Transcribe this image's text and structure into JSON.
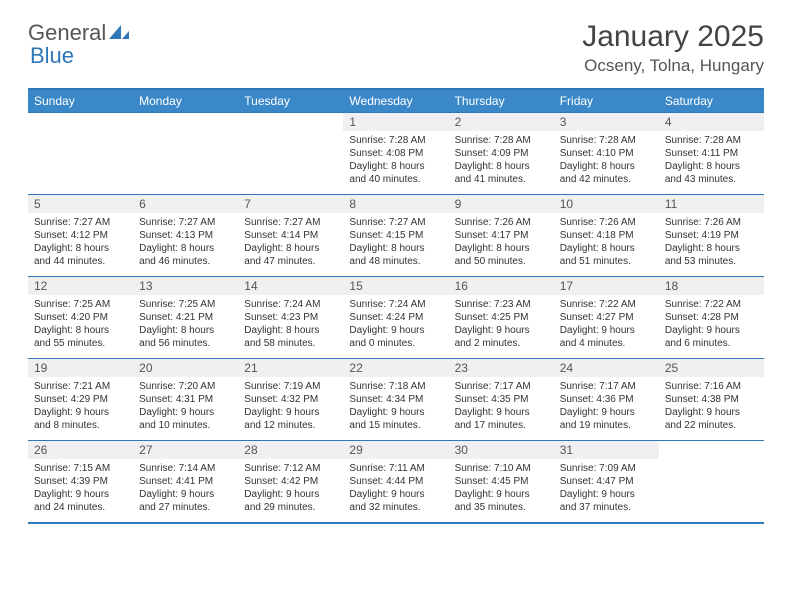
{
  "brand": {
    "word1": "General",
    "word2": "Blue"
  },
  "title": "January 2025",
  "location": "Ocseny, Tolna, Hungary",
  "colors": {
    "header_bg": "#3b88c9",
    "border": "#2f77b8",
    "daynum_bg": "#eef0f1",
    "text": "#333333"
  },
  "weekdays": [
    "Sunday",
    "Monday",
    "Tuesday",
    "Wednesday",
    "Thursday",
    "Friday",
    "Saturday"
  ],
  "cells": [
    {
      "n": "",
      "sr": "",
      "ss": "",
      "dl": ""
    },
    {
      "n": "",
      "sr": "",
      "ss": "",
      "dl": ""
    },
    {
      "n": "",
      "sr": "",
      "ss": "",
      "dl": ""
    },
    {
      "n": "1",
      "sr": "Sunrise: 7:28 AM",
      "ss": "Sunset: 4:08 PM",
      "dl": "Daylight: 8 hours and 40 minutes."
    },
    {
      "n": "2",
      "sr": "Sunrise: 7:28 AM",
      "ss": "Sunset: 4:09 PM",
      "dl": "Daylight: 8 hours and 41 minutes."
    },
    {
      "n": "3",
      "sr": "Sunrise: 7:28 AM",
      "ss": "Sunset: 4:10 PM",
      "dl": "Daylight: 8 hours and 42 minutes."
    },
    {
      "n": "4",
      "sr": "Sunrise: 7:28 AM",
      "ss": "Sunset: 4:11 PM",
      "dl": "Daylight: 8 hours and 43 minutes."
    },
    {
      "n": "5",
      "sr": "Sunrise: 7:27 AM",
      "ss": "Sunset: 4:12 PM",
      "dl": "Daylight: 8 hours and 44 minutes."
    },
    {
      "n": "6",
      "sr": "Sunrise: 7:27 AM",
      "ss": "Sunset: 4:13 PM",
      "dl": "Daylight: 8 hours and 46 minutes."
    },
    {
      "n": "7",
      "sr": "Sunrise: 7:27 AM",
      "ss": "Sunset: 4:14 PM",
      "dl": "Daylight: 8 hours and 47 minutes."
    },
    {
      "n": "8",
      "sr": "Sunrise: 7:27 AM",
      "ss": "Sunset: 4:15 PM",
      "dl": "Daylight: 8 hours and 48 minutes."
    },
    {
      "n": "9",
      "sr": "Sunrise: 7:26 AM",
      "ss": "Sunset: 4:17 PM",
      "dl": "Daylight: 8 hours and 50 minutes."
    },
    {
      "n": "10",
      "sr": "Sunrise: 7:26 AM",
      "ss": "Sunset: 4:18 PM",
      "dl": "Daylight: 8 hours and 51 minutes."
    },
    {
      "n": "11",
      "sr": "Sunrise: 7:26 AM",
      "ss": "Sunset: 4:19 PM",
      "dl": "Daylight: 8 hours and 53 minutes."
    },
    {
      "n": "12",
      "sr": "Sunrise: 7:25 AM",
      "ss": "Sunset: 4:20 PM",
      "dl": "Daylight: 8 hours and 55 minutes."
    },
    {
      "n": "13",
      "sr": "Sunrise: 7:25 AM",
      "ss": "Sunset: 4:21 PM",
      "dl": "Daylight: 8 hours and 56 minutes."
    },
    {
      "n": "14",
      "sr": "Sunrise: 7:24 AM",
      "ss": "Sunset: 4:23 PM",
      "dl": "Daylight: 8 hours and 58 minutes."
    },
    {
      "n": "15",
      "sr": "Sunrise: 7:24 AM",
      "ss": "Sunset: 4:24 PM",
      "dl": "Daylight: 9 hours and 0 minutes."
    },
    {
      "n": "16",
      "sr": "Sunrise: 7:23 AM",
      "ss": "Sunset: 4:25 PM",
      "dl": "Daylight: 9 hours and 2 minutes."
    },
    {
      "n": "17",
      "sr": "Sunrise: 7:22 AM",
      "ss": "Sunset: 4:27 PM",
      "dl": "Daylight: 9 hours and 4 minutes."
    },
    {
      "n": "18",
      "sr": "Sunrise: 7:22 AM",
      "ss": "Sunset: 4:28 PM",
      "dl": "Daylight: 9 hours and 6 minutes."
    },
    {
      "n": "19",
      "sr": "Sunrise: 7:21 AM",
      "ss": "Sunset: 4:29 PM",
      "dl": "Daylight: 9 hours and 8 minutes."
    },
    {
      "n": "20",
      "sr": "Sunrise: 7:20 AM",
      "ss": "Sunset: 4:31 PM",
      "dl": "Daylight: 9 hours and 10 minutes."
    },
    {
      "n": "21",
      "sr": "Sunrise: 7:19 AM",
      "ss": "Sunset: 4:32 PM",
      "dl": "Daylight: 9 hours and 12 minutes."
    },
    {
      "n": "22",
      "sr": "Sunrise: 7:18 AM",
      "ss": "Sunset: 4:34 PM",
      "dl": "Daylight: 9 hours and 15 minutes."
    },
    {
      "n": "23",
      "sr": "Sunrise: 7:17 AM",
      "ss": "Sunset: 4:35 PM",
      "dl": "Daylight: 9 hours and 17 minutes."
    },
    {
      "n": "24",
      "sr": "Sunrise: 7:17 AM",
      "ss": "Sunset: 4:36 PM",
      "dl": "Daylight: 9 hours and 19 minutes."
    },
    {
      "n": "25",
      "sr": "Sunrise: 7:16 AM",
      "ss": "Sunset: 4:38 PM",
      "dl": "Daylight: 9 hours and 22 minutes."
    },
    {
      "n": "26",
      "sr": "Sunrise: 7:15 AM",
      "ss": "Sunset: 4:39 PM",
      "dl": "Daylight: 9 hours and 24 minutes."
    },
    {
      "n": "27",
      "sr": "Sunrise: 7:14 AM",
      "ss": "Sunset: 4:41 PM",
      "dl": "Daylight: 9 hours and 27 minutes."
    },
    {
      "n": "28",
      "sr": "Sunrise: 7:12 AM",
      "ss": "Sunset: 4:42 PM",
      "dl": "Daylight: 9 hours and 29 minutes."
    },
    {
      "n": "29",
      "sr": "Sunrise: 7:11 AM",
      "ss": "Sunset: 4:44 PM",
      "dl": "Daylight: 9 hours and 32 minutes."
    },
    {
      "n": "30",
      "sr": "Sunrise: 7:10 AM",
      "ss": "Sunset: 4:45 PM",
      "dl": "Daylight: 9 hours and 35 minutes."
    },
    {
      "n": "31",
      "sr": "Sunrise: 7:09 AM",
      "ss": "Sunset: 4:47 PM",
      "dl": "Daylight: 9 hours and 37 minutes."
    },
    {
      "n": "",
      "sr": "",
      "ss": "",
      "dl": ""
    }
  ]
}
